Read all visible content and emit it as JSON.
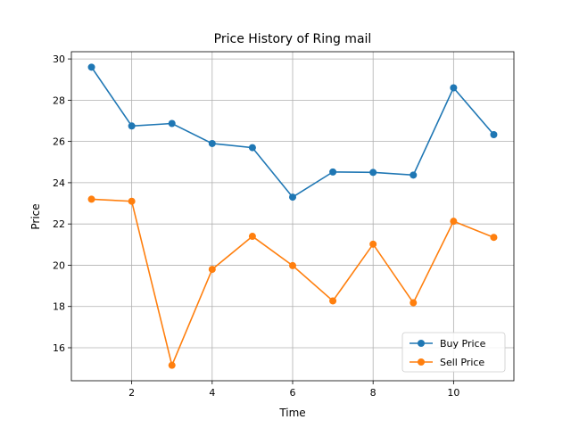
{
  "chart_data": {
    "type": "line",
    "title": "Price History of Ring mail",
    "xlabel": "Time",
    "ylabel": "Price",
    "x": [
      1,
      2,
      3,
      4,
      5,
      6,
      7,
      8,
      9,
      10,
      11
    ],
    "series": [
      {
        "name": "Buy Price",
        "color": "#1f77b4",
        "values": [
          29.6,
          26.75,
          26.87,
          25.9,
          25.7,
          23.3,
          24.52,
          24.5,
          24.37,
          28.6,
          26.33
        ]
      },
      {
        "name": "Sell Price",
        "color": "#ff7f0e",
        "values": [
          23.2,
          23.1,
          15.15,
          19.8,
          21.4,
          19.98,
          18.27,
          21.02,
          18.18,
          22.13,
          21.35
        ]
      }
    ],
    "xlim": [
      0.5,
      11.5
    ],
    "ylim": [
      14.4,
      30.35
    ],
    "xticks": [
      2,
      4,
      6,
      8,
      10
    ],
    "yticks": [
      16,
      18,
      20,
      22,
      24,
      26,
      28,
      30
    ],
    "grid": true,
    "legend_position": "lower-right"
  }
}
